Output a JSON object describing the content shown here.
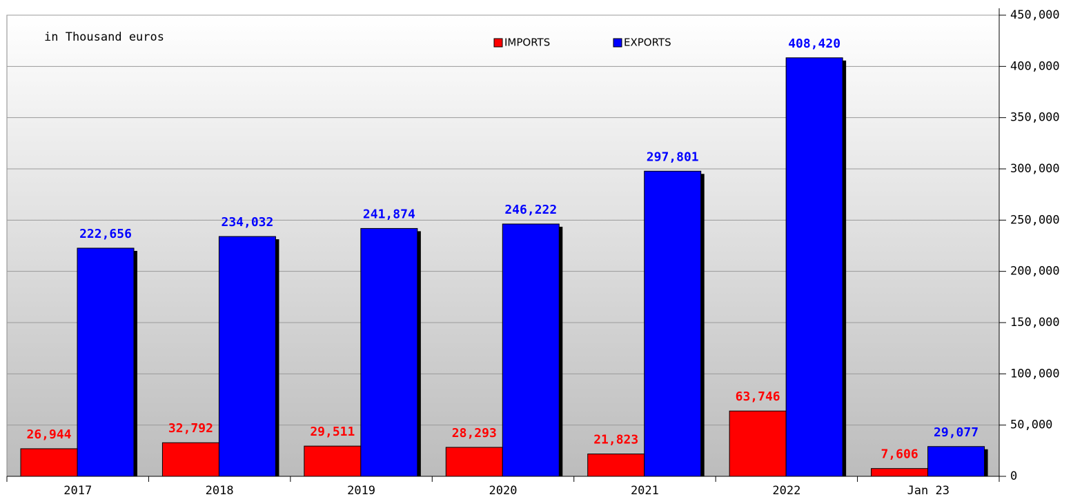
{
  "chart_data": {
    "type": "bar",
    "annotation": "in Thousand euros",
    "categories": [
      "2017",
      "2018",
      "2019",
      "2020",
      "2021",
      "2022",
      "Jan 23"
    ],
    "series": [
      {
        "name": "IMPORTS",
        "color": "#ff0000",
        "values": [
          26944,
          32792,
          29511,
          28293,
          21823,
          63746,
          7606
        ],
        "value_labels": [
          "26,944",
          "32,792",
          "29,511",
          "28,293",
          "21,823",
          "63,746",
          "7,606"
        ]
      },
      {
        "name": "EXPORTS",
        "color": "#0000ff",
        "values": [
          222656,
          234032,
          241874,
          246222,
          297801,
          408420,
          29077
        ],
        "value_labels": [
          "222,656",
          "234,032",
          "241,874",
          "246,222",
          "297,801",
          "408,420",
          "29,077"
        ]
      }
    ],
    "ylim": [
      0,
      450000
    ],
    "yticks": [
      0,
      {
        "value": 50000,
        "label": "50,000"
      },
      {
        "value": 100000,
        "label": "100,000"
      },
      {
        "value": 150000,
        "label": "150,000"
      },
      {
        "value": 200000,
        "label": "200,000"
      },
      {
        "value": 250000,
        "label": "250,000"
      },
      {
        "value": 300000,
        "label": "300,000"
      },
      {
        "value": 350000,
        "label": "350,000"
      },
      {
        "value": 400000,
        "label": "400,000"
      },
      {
        "value": 450000,
        "label": "450,000"
      }
    ],
    "grid": true,
    "legend": "top"
  }
}
